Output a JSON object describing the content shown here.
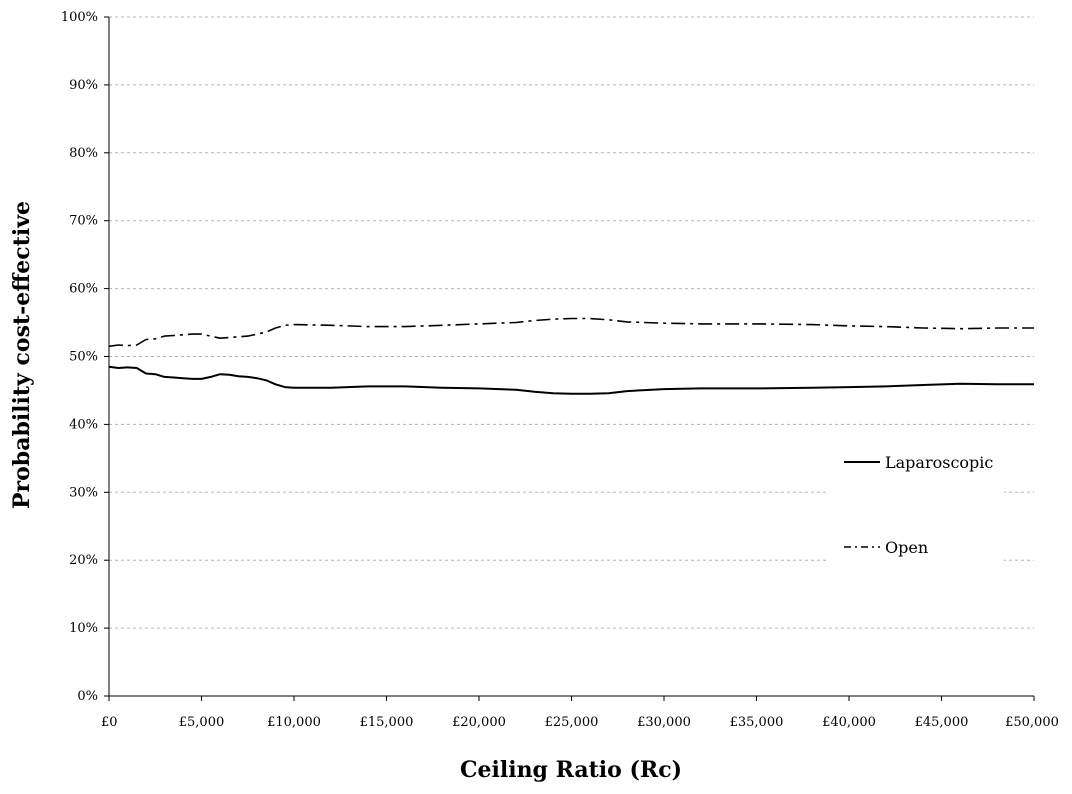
{
  "chart_data": {
    "type": "line",
    "title": "",
    "xlabel": "Ceiling Ratio (Rc)",
    "ylabel": "Probability cost-effective",
    "xlim": [
      0,
      50000
    ],
    "ylim": [
      0,
      100
    ],
    "x_ticks": [
      0,
      5000,
      10000,
      15000,
      20000,
      25000,
      30000,
      35000,
      40000,
      45000,
      50000
    ],
    "x_tick_labels": [
      "£0",
      "£5,000",
      "£10,000",
      "£15,000",
      "£20,000",
      "£25,000",
      "£30,000",
      "£35,000",
      "£40,000",
      "£45,000",
      "£50,000"
    ],
    "y_ticks": [
      0,
      10,
      20,
      30,
      40,
      50,
      60,
      70,
      80,
      90,
      100
    ],
    "y_tick_labels": [
      "0%",
      "10%",
      "20%",
      "30%",
      "40%",
      "50%",
      "60%",
      "70%",
      "80%",
      "90%",
      "100%"
    ],
    "grid": "horizontal dashed",
    "legend_position": "right",
    "series": [
      {
        "name": "Laparoscopic",
        "style": "solid",
        "color": "#000000",
        "x": [
          0,
          500,
          1000,
          1500,
          2000,
          2500,
          3000,
          3500,
          4000,
          4500,
          5000,
          5500,
          6000,
          6500,
          7000,
          7500,
          8000,
          8500,
          9000,
          9500,
          10000,
          12000,
          14000,
          16000,
          18000,
          20000,
          22000,
          23000,
          24000,
          25000,
          26000,
          27000,
          28000,
          30000,
          32000,
          35000,
          38000,
          40000,
          42000,
          44000,
          46000,
          48000,
          50000
        ],
        "values": [
          48.5,
          48.3,
          48.4,
          48.3,
          47.5,
          47.4,
          47.0,
          46.9,
          46.8,
          46.7,
          46.7,
          47.0,
          47.4,
          47.3,
          47.1,
          47.0,
          46.8,
          46.5,
          45.9,
          45.5,
          45.4,
          45.4,
          45.6,
          45.6,
          45.4,
          45.3,
          45.1,
          44.8,
          44.6,
          44.5,
          44.5,
          44.6,
          44.9,
          45.2,
          45.3,
          45.3,
          45.4,
          45.5,
          45.6,
          45.8,
          46.0,
          45.9,
          45.9
        ]
      },
      {
        "name": "Open",
        "style": "dash-dot",
        "color": "#000000",
        "x": [
          0,
          500,
          1000,
          1500,
          2000,
          2500,
          3000,
          3500,
          4000,
          4500,
          5000,
          5500,
          6000,
          6500,
          7000,
          7500,
          8000,
          8500,
          9000,
          9500,
          10000,
          12000,
          14000,
          16000,
          18000,
          20000,
          22000,
          23000,
          24000,
          25000,
          26000,
          27000,
          28000,
          30000,
          32000,
          35000,
          38000,
          40000,
          42000,
          44000,
          46000,
          48000,
          50000
        ],
        "values": [
          51.5,
          51.7,
          51.6,
          51.7,
          52.5,
          52.6,
          53.0,
          53.1,
          53.2,
          53.3,
          53.3,
          53.0,
          52.7,
          52.8,
          52.9,
          53.0,
          53.3,
          53.6,
          54.2,
          54.6,
          54.7,
          54.6,
          54.4,
          54.4,
          54.6,
          54.8,
          55.0,
          55.3,
          55.5,
          55.6,
          55.6,
          55.4,
          55.1,
          54.9,
          54.8,
          54.8,
          54.7,
          54.5,
          54.4,
          54.2,
          54.1,
          54.2,
          54.2
        ]
      }
    ]
  }
}
